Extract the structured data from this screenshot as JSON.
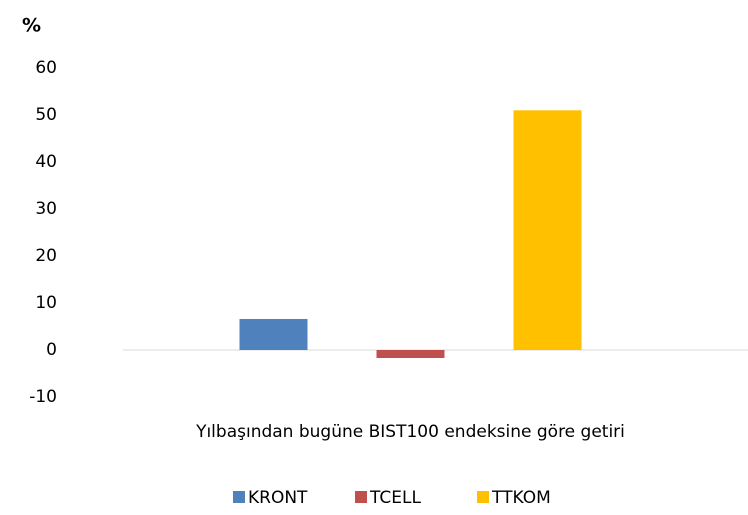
{
  "chart_data": {
    "type": "bar",
    "y_label": "%",
    "categories": [
      "Yılbaşından bugüne BIST100 endeksine göre getiri"
    ],
    "series": [
      {
        "name": "KRONT",
        "color": "#4f81bd",
        "values": [
          6.6
        ]
      },
      {
        "name": "TCELL",
        "color": "#c0504d",
        "values": [
          -1.7
        ]
      },
      {
        "name": "TTKOM",
        "color": "#ffc000",
        "values": [
          51
        ]
      }
    ],
    "ylim": [
      -10,
      60
    ],
    "yticks": [
      -10,
      0,
      10,
      20,
      30,
      40,
      50,
      60
    ],
    "grid": false,
    "legend": "bottom"
  }
}
